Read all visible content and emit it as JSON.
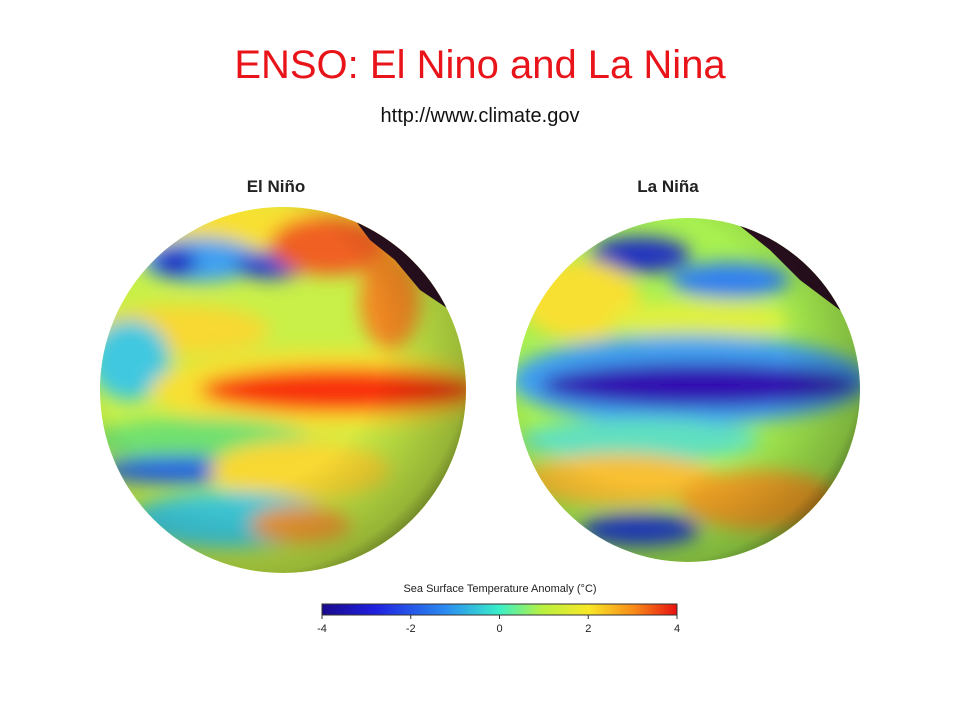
{
  "header": {
    "title": "ENSO: El Nino and La Nina",
    "subtitle": "http://www.climate.gov"
  },
  "panels": [
    {
      "label": "El Niño"
    },
    {
      "label": "La Niña"
    }
  ],
  "colorbar": {
    "title": "Sea Surface Temperature Anomaly (°C)",
    "lim": [
      -4,
      4
    ],
    "ticks": [
      -4,
      -2,
      0,
      2,
      4
    ]
  }
}
